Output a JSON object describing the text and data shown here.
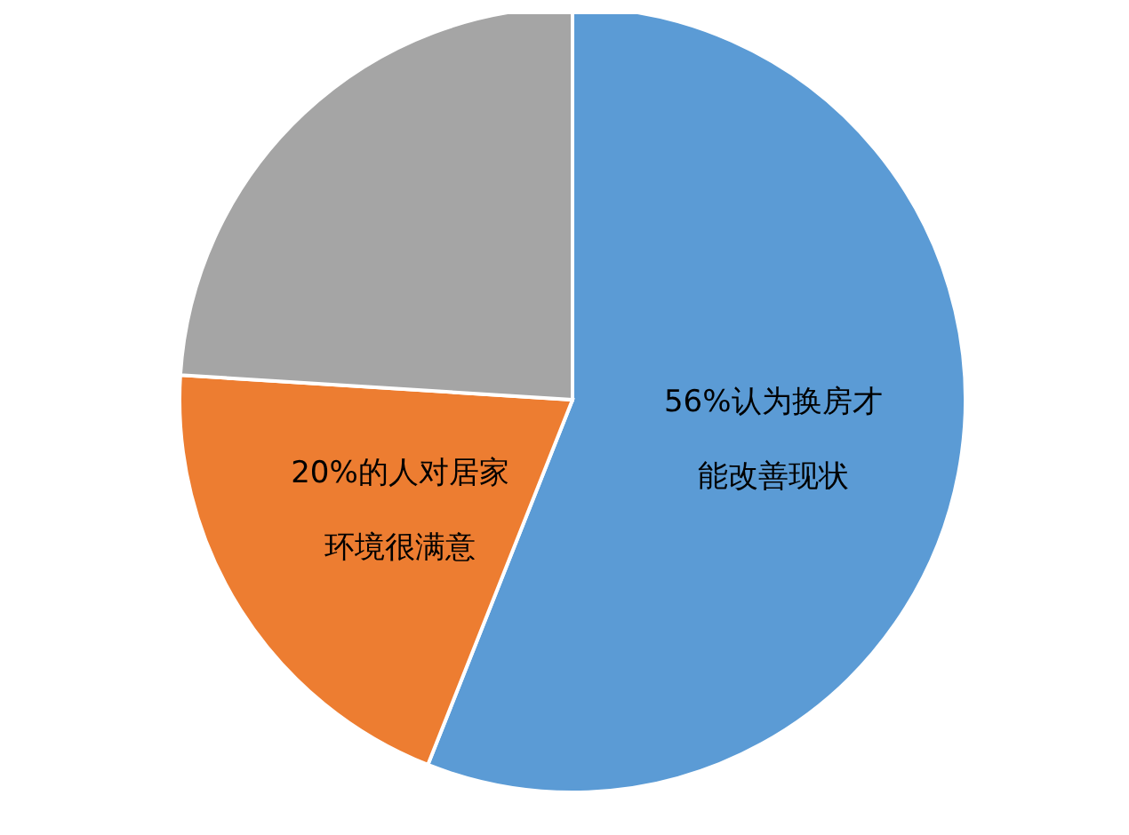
{
  "chart_data": {
    "type": "pie",
    "categories": [
      null,
      null,
      null
    ],
    "values": [
      56,
      20,
      24
    ],
    "colors": [
      "#5b9bd5",
      "#ed7d31",
      "#a5a5a5"
    ],
    "value_labels": [
      "56%认为换房才能改善现状",
      "20%的人对居家环境很满意",
      null
    ],
    "legend": false
  }
}
